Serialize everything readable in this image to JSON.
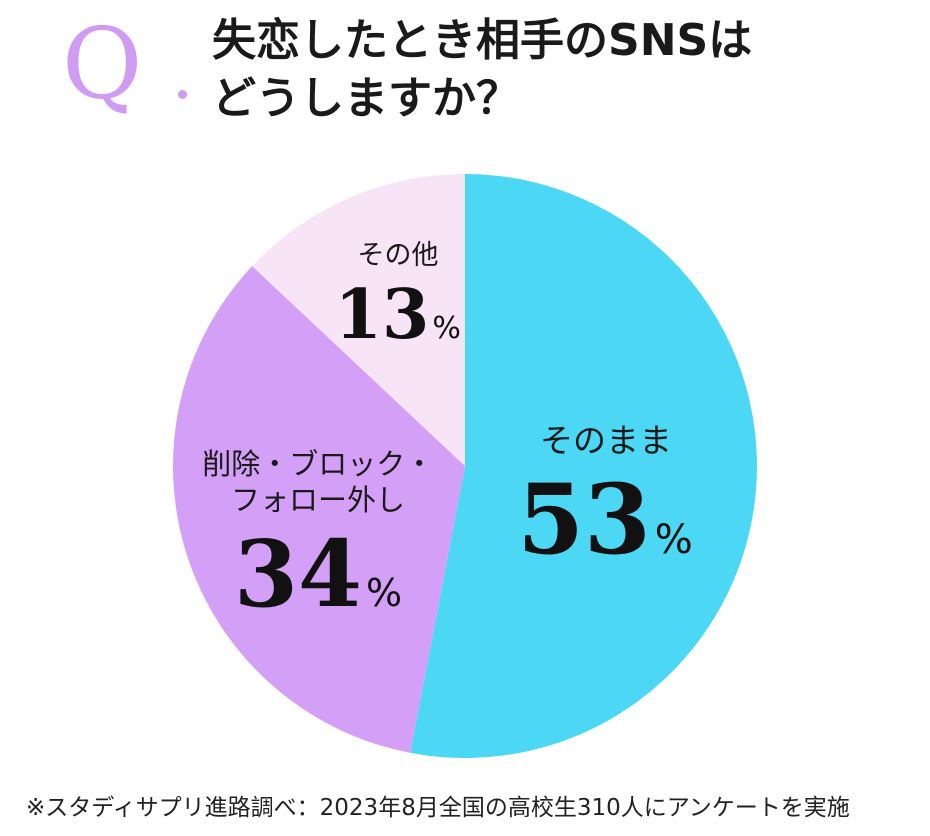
{
  "header": {
    "q_letter": "Q",
    "title_line1": "失恋したとき相手のSNSは",
    "title_line2": "どうしますか？"
  },
  "colors": {
    "accent": "#cf9cf2",
    "slice_keep": "#4cd7f5",
    "slice_delete": "#d4a0f7",
    "slice_other": "#f8e4f7"
  },
  "chart_data": {
    "type": "pie",
    "title": "失恋したとき相手のSNSはどうしますか？",
    "unit": "%",
    "slices": [
      {
        "label": "そのまま",
        "value": 53,
        "color": "#4cd7f5"
      },
      {
        "label": "削除・ブロック・フォロー外し",
        "label_lines": [
          "削除・ブロック・",
          "フォロー外し"
        ],
        "value": 34,
        "color": "#d4a0f7"
      },
      {
        "label": "その他",
        "value": 13,
        "color": "#f8e4f7"
      }
    ]
  },
  "footnote": "※スタディサプリ進路調べ：2023年8月全国の高校生310人にアンケートを実施"
}
